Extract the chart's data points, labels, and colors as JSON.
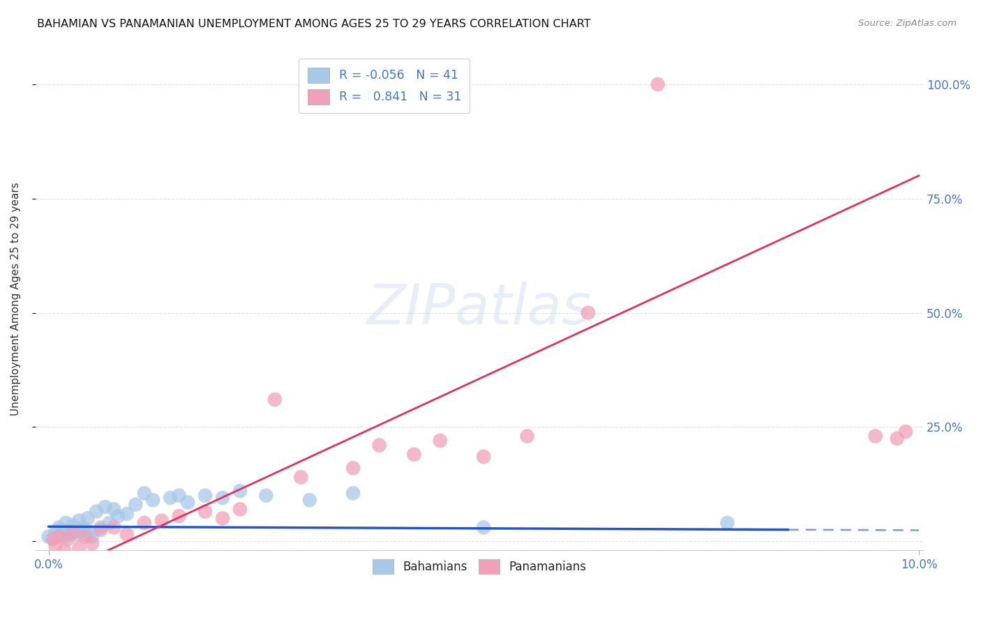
{
  "title": "BAHAMIAN VS PANAMANIAN UNEMPLOYMENT AMONG AGES 25 TO 29 YEARS CORRELATION CHART",
  "source": "Source: ZipAtlas.com",
  "ylabel": "Unemployment Among Ages 25 to 29 years",
  "xmin": 0.0,
  "xmax": 10.0,
  "ymin": -2.0,
  "ymax": 108.0,
  "xtick_positions": [
    0.0,
    10.0
  ],
  "xtick_labels": [
    "0.0%",
    "10.0%"
  ],
  "ytick_positions": [
    0,
    25,
    50,
    75,
    100
  ],
  "ytick_labels": [
    "",
    "25.0%",
    "50.0%",
    "75.0%",
    "100.0%"
  ],
  "blue_color": "#a8c8e8",
  "pink_color": "#f0a0b8",
  "blue_line_color": "#2255cc",
  "blue_line_dash_color": "#8899cc",
  "pink_line_color": "#e03060",
  "R_blue": -0.056,
  "N_blue": 41,
  "R_pink": 0.841,
  "N_pink": 31,
  "watermark_text": "ZIPatlas",
  "grid_color": "#dddddd",
  "axis_label_color": "#4477cc",
  "legend_text_color": "#4477cc",
  "blue_line_solid_end_x": 8.5,
  "blue_line_intercept": 3.2,
  "blue_line_slope": -0.08,
  "pink_line_intercept": -8.0,
  "pink_line_slope": 8.8,
  "blue_points_x": [
    0.0,
    0.05,
    0.08,
    0.1,
    0.12,
    0.15,
    0.18,
    0.2,
    0.22,
    0.25,
    0.28,
    0.3,
    0.32,
    0.35,
    0.38,
    0.4,
    0.42,
    0.45,
    0.48,
    0.5,
    0.55,
    0.6,
    0.65,
    0.7,
    0.75,
    0.8,
    0.9,
    1.0,
    1.1,
    1.2,
    1.4,
    1.5,
    1.6,
    1.8,
    2.0,
    2.2,
    2.5,
    3.0,
    3.5,
    7.8,
    5.0
  ],
  "blue_points_y": [
    1.0,
    0.5,
    2.0,
    1.5,
    3.0,
    2.5,
    1.0,
    4.0,
    2.0,
    1.5,
    3.5,
    2.0,
    1.5,
    4.5,
    2.5,
    3.0,
    1.5,
    5.0,
    2.0,
    1.0,
    6.5,
    3.0,
    7.5,
    4.0,
    7.0,
    5.5,
    6.0,
    8.0,
    10.5,
    9.0,
    9.5,
    10.0,
    8.5,
    10.0,
    9.5,
    11.0,
    10.0,
    9.0,
    10.5,
    4.0,
    3.0
  ],
  "pink_points_x": [
    0.05,
    0.08,
    0.12,
    0.18,
    0.22,
    0.28,
    0.35,
    0.42,
    0.5,
    0.6,
    0.75,
    0.9,
    1.1,
    1.3,
    1.5,
    1.8,
    2.0,
    2.2,
    2.6,
    2.9,
    3.5,
    3.8,
    4.2,
    4.5,
    5.0,
    5.5,
    6.2,
    7.0,
    9.5,
    9.75,
    9.85
  ],
  "pink_points_y": [
    0.5,
    -1.0,
    1.0,
    -2.0,
    0.5,
    2.0,
    -1.5,
    1.0,
    -0.5,
    2.5,
    3.0,
    1.5,
    4.0,
    4.5,
    5.5,
    6.5,
    5.0,
    7.0,
    31.0,
    14.0,
    16.0,
    21.0,
    19.0,
    22.0,
    18.5,
    23.0,
    50.0,
    100.0,
    23.0,
    22.5,
    24.0
  ]
}
